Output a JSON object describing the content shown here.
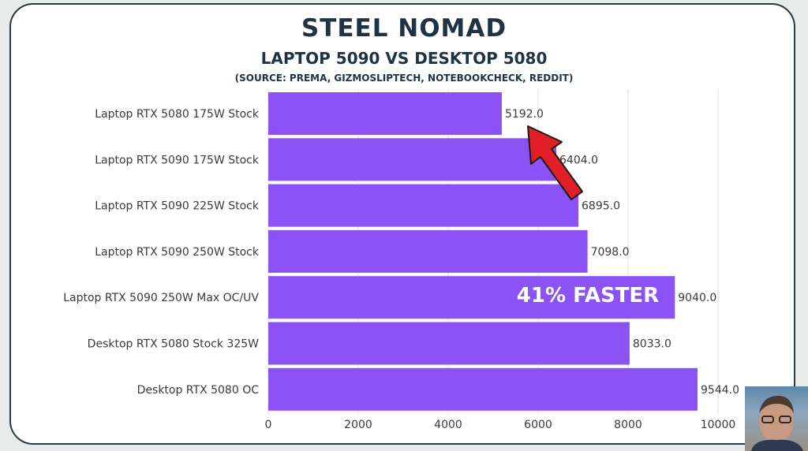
{
  "header": {
    "title": "STEEL NOMAD",
    "subtitle": "LAPTOP 5090 VS DESKTOP 5080",
    "source": "(SOURCE: PREMA, GIZMOSLIPTECH, NOTEBOOKCHECK, REDDIT)"
  },
  "annotation": {
    "text": "41% FASTER",
    "arrow_color": "#e21f26"
  },
  "colors": {
    "bar": "#8b52f6",
    "text": "#3a3a3a",
    "grid": "#dddddd"
  },
  "chart_data": {
    "type": "bar",
    "orientation": "horizontal",
    "title": "STEEL NOMAD",
    "subtitle": "LAPTOP 5090 VS DESKTOP 5080",
    "categories": [
      "Laptop RTX 5080 175W Stock",
      "Laptop RTX 5090 175W Stock",
      "Laptop RTX 5090 225W Stock",
      "Laptop RTX 5090 250W Stock",
      "Laptop RTX 5090 250W Max OC/UV",
      "Desktop RTX 5080 Stock 325W",
      "Desktop RTX 5080 OC"
    ],
    "values": [
      5192.0,
      6404.0,
      6895.0,
      7098.0,
      9040.0,
      8033.0,
      9544.0
    ],
    "value_labels": [
      "5192.0",
      "6404.0",
      "6895.0",
      "7098.0",
      "9040.0",
      "8033.0",
      "9544.0"
    ],
    "xlim": [
      0,
      10000
    ],
    "xticks": [
      0,
      2000,
      4000,
      6000,
      8000,
      10000
    ],
    "xtick_labels": [
      "0",
      "2000",
      "4000",
      "6000",
      "8000",
      "10000"
    ],
    "grid": true
  }
}
